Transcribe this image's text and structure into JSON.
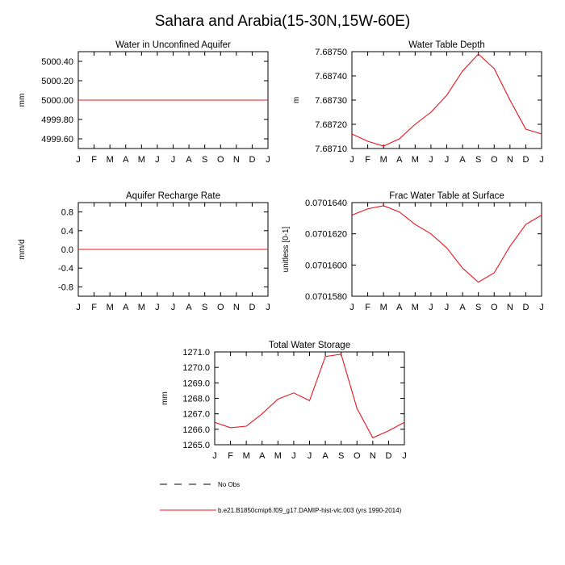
{
  "figure_title": "Sahara and Arabia(15-30N,15W-60E)",
  "colors": {
    "model_line": "#e8141c",
    "obs_line": "#000000",
    "axis": "#000000"
  },
  "chart_data": [
    {
      "type": "line",
      "title": "Water in Unconfined Aquifer",
      "ylabel": "mm",
      "xlabel": "",
      "categories": [
        "J",
        "F",
        "M",
        "A",
        "M",
        "J",
        "J",
        "A",
        "S",
        "O",
        "N",
        "D",
        "J"
      ],
      "ylim": [
        4999.5,
        5000.5
      ],
      "yticks": [
        "5000.40",
        "5000.20",
        "5000.00",
        "4999.80",
        "4999.60"
      ],
      "ytick_values": [
        5000.4,
        5000.2,
        5000.0,
        4999.8,
        4999.6
      ],
      "series": [
        {
          "name": "b.e21.B1850cmip6.f09_g17.DAMIP-hist-vlc.003 (yrs 1990-2014)",
          "values": [
            5000,
            5000,
            5000,
            5000,
            5000,
            5000,
            5000,
            5000,
            5000,
            5000,
            5000,
            5000,
            5000
          ]
        }
      ]
    },
    {
      "type": "line",
      "title": "Water Table Depth",
      "ylabel": "m",
      "xlabel": "",
      "categories": [
        "J",
        "F",
        "M",
        "A",
        "M",
        "J",
        "J",
        "A",
        "S",
        "O",
        "N",
        "D",
        "J"
      ],
      "ylim": [
        7.6871,
        7.6875
      ],
      "yticks": [
        "7.68750",
        "7.68740",
        "7.68730",
        "7.68720",
        "7.68710"
      ],
      "ytick_values": [
        7.6875,
        7.6874,
        7.6873,
        7.6872,
        7.6871
      ],
      "series": [
        {
          "name": "b.e21.B1850cmip6.f09_g17.DAMIP-hist-vlc.003 (yrs 1990-2014)",
          "values": [
            7.68716,
            7.68713,
            7.68711,
            7.68714,
            7.6872,
            7.68725,
            7.68732,
            7.68742,
            7.68749,
            7.68743,
            7.6873,
            7.68718,
            7.68716
          ]
        }
      ]
    },
    {
      "type": "line",
      "title": "Aquifer Recharge Rate",
      "ylabel": "mm/d",
      "xlabel": "",
      "categories": [
        "J",
        "F",
        "M",
        "A",
        "M",
        "J",
        "J",
        "A",
        "S",
        "O",
        "N",
        "D",
        "J"
      ],
      "ylim": [
        -1.0,
        1.0
      ],
      "yticks": [
        "0.8",
        "0.4",
        "0.0",
        "-0.4",
        "-0.8"
      ],
      "ytick_values": [
        0.8,
        0.4,
        0.0,
        -0.4,
        -0.8
      ],
      "series": [
        {
          "name": "b.e21.B1850cmip6.f09_g17.DAMIP-hist-vlc.003 (yrs 1990-2014)",
          "values": [
            0,
            0,
            0,
            0,
            0,
            0,
            0,
            0,
            0,
            0,
            0,
            0,
            0
          ]
        }
      ]
    },
    {
      "type": "line",
      "title": "Frac Water Table at Surface",
      "ylabel": "unitless [0-1]",
      "xlabel": "",
      "categories": [
        "J",
        "F",
        "M",
        "A",
        "M",
        "J",
        "J",
        "A",
        "S",
        "O",
        "N",
        "D",
        "J"
      ],
      "ylim": [
        0.070158,
        0.070164
      ],
      "yticks": [
        "0.0701640",
        "0.0701620",
        "0.0701600",
        "0.0701580"
      ],
      "ytick_values": [
        0.070164,
        0.070162,
        0.07016,
        0.070158
      ],
      "series": [
        {
          "name": "b.e21.B1850cmip6.f09_g17.DAMIP-hist-vlc.003 (yrs 1990-2014)",
          "values": [
            0.0701632,
            0.0701636,
            0.0701638,
            0.0701634,
            0.0701626,
            0.070162,
            0.0701611,
            0.0701598,
            0.0701589,
            0.0701595,
            0.0701612,
            0.0701626,
            0.0701632
          ]
        }
      ]
    },
    {
      "type": "line",
      "title": "Total Water Storage",
      "ylabel": "mm",
      "xlabel": "",
      "categories": [
        "J",
        "F",
        "M",
        "A",
        "M",
        "J",
        "J",
        "A",
        "S",
        "O",
        "N",
        "D",
        "J"
      ],
      "ylim": [
        1265.0,
        1271.0
      ],
      "yticks": [
        "1271.0",
        "1270.0",
        "1269.0",
        "1268.0",
        "1267.0",
        "1266.0",
        "1265.0"
      ],
      "ytick_values": [
        1271,
        1270,
        1269,
        1268,
        1267,
        1266,
        1265
      ],
      "series": [
        {
          "name": "b.e21.B1850cmip6.f09_g17.DAMIP-hist-vlc.003 (yrs 1990-2014)",
          "values": [
            1266.45,
            1266.1,
            1266.2,
            1267.0,
            1267.95,
            1268.35,
            1267.85,
            1270.7,
            1270.85,
            1267.35,
            1265.45,
            1265.9,
            1266.45
          ]
        }
      ]
    }
  ],
  "legend": [
    {
      "label": "No Obs",
      "style": "dashed"
    },
    {
      "label": "b.e21.B1850cmip6.f09_g17.DAMIP-hist-vlc.003 (yrs 1990-2014)",
      "style": "solid"
    }
  ]
}
